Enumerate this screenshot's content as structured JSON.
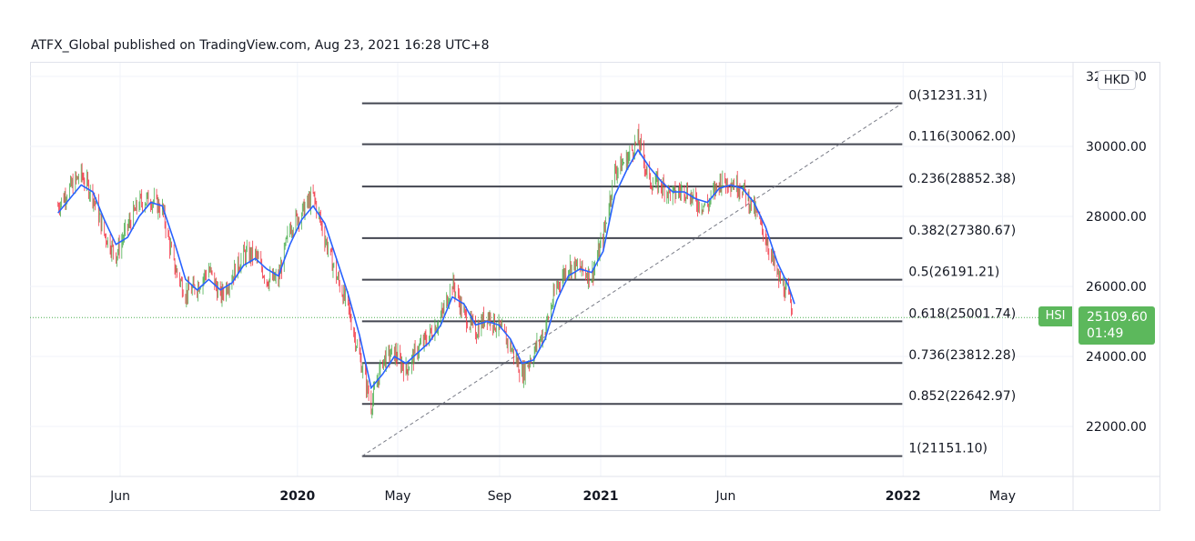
{
  "header": {
    "caption": "ATFX_Global published on TradingView.com, Aug 23, 2021 16:28 UTC+8"
  },
  "currency": "HKD",
  "last_price": {
    "symbol": "HSI",
    "price": "25109.60",
    "countdown": "01:49",
    "value": 25109.6
  },
  "colors": {
    "bull": "#4caf50",
    "bear": "#f23645",
    "ma": "#2962ff",
    "fib_line": "#434651",
    "trend": "#787b86",
    "tag_bg": "#5cb85c",
    "grid": "#f0f3fa"
  },
  "chart_data": {
    "type": "line",
    "title": "",
    "ylim": [
      20900,
      32200
    ],
    "grid": true,
    "y_ticks": [
      {
        "value": 32000,
        "label": "32000.00"
      },
      {
        "value": 30000,
        "label": "30000.00"
      },
      {
        "value": 28000,
        "label": "28000.00"
      },
      {
        "value": 26000,
        "label": "26000.00"
      },
      {
        "value": 24000,
        "label": "24000.00"
      },
      {
        "value": 22000,
        "label": "22000.00"
      }
    ],
    "x_ticks": [
      {
        "label": "Jun",
        "date": "2019-06",
        "bold": false
      },
      {
        "label": "2020",
        "date": "2020-01",
        "bold": true
      },
      {
        "label": "May",
        "date": "2020-05",
        "bold": false
      },
      {
        "label": "Sep",
        "date": "2020-09",
        "bold": false
      },
      {
        "label": "2021",
        "date": "2021-01",
        "bold": true
      },
      {
        "label": "Jun",
        "date": "2021-06",
        "bold": false
      },
      {
        "label": "2022",
        "date": "2022-01",
        "bold": true
      },
      {
        "label": "May",
        "date": "2022-05",
        "bold": false
      }
    ],
    "x_range": [
      "2019-03",
      "2022-08"
    ],
    "series": [
      {
        "name": "HSI",
        "x": [
          "2019-03-18",
          "2019-04-01",
          "2019-04-15",
          "2019-04-29",
          "2019-05-13",
          "2019-05-27",
          "2019-06-10",
          "2019-06-24",
          "2019-07-08",
          "2019-07-22",
          "2019-08-05",
          "2019-08-19",
          "2019-09-02",
          "2019-09-16",
          "2019-09-30",
          "2019-10-14",
          "2019-10-28",
          "2019-11-11",
          "2019-11-25",
          "2019-12-09",
          "2019-12-23",
          "2020-01-06",
          "2020-01-20",
          "2020-02-03",
          "2020-02-17",
          "2020-03-02",
          "2020-03-16",
          "2020-03-30",
          "2020-04-13",
          "2020-04-27",
          "2020-05-11",
          "2020-05-25",
          "2020-06-08",
          "2020-06-22",
          "2020-07-06",
          "2020-07-20",
          "2020-08-03",
          "2020-08-17",
          "2020-08-31",
          "2020-09-14",
          "2020-09-28",
          "2020-10-12",
          "2020-10-26",
          "2020-11-09",
          "2020-11-23",
          "2020-12-07",
          "2020-12-21",
          "2021-01-04",
          "2021-01-18",
          "2021-02-01",
          "2021-02-15",
          "2021-03-01",
          "2021-03-15",
          "2021-03-29",
          "2021-04-12",
          "2021-04-26",
          "2021-05-10",
          "2021-05-24",
          "2021-06-07",
          "2021-06-21",
          "2021-07-05",
          "2021-07-19",
          "2021-08-02",
          "2021-08-16",
          "2021-08-23"
        ],
        "values": [
          28300,
          28800,
          29200,
          28600,
          27500,
          26900,
          27700,
          28400,
          28500,
          28200,
          26600,
          25800,
          26000,
          26500,
          25700,
          26300,
          26900,
          26900,
          26200,
          26200,
          27700,
          28100,
          28600,
          27400,
          26300,
          25400,
          24000,
          22600,
          23900,
          24100,
          23600,
          24200,
          24600,
          25100,
          26100,
          25200,
          24700,
          25200,
          24800,
          24300,
          23500,
          24100,
          24800,
          26000,
          26600,
          26500,
          26300,
          27400,
          29300,
          29600,
          30200,
          29000,
          28900,
          28600,
          28800,
          28400,
          28300,
          29000,
          29000,
          28800,
          28200,
          27400,
          26300,
          25700,
          25109.6
        ]
      },
      {
        "name": "MA",
        "x": [
          "2019-03-18",
          "2019-04-01",
          "2019-04-15",
          "2019-04-29",
          "2019-05-13",
          "2019-05-27",
          "2019-06-10",
          "2019-06-24",
          "2019-07-08",
          "2019-07-22",
          "2019-08-05",
          "2019-08-19",
          "2019-09-02",
          "2019-09-16",
          "2019-09-30",
          "2019-10-14",
          "2019-10-28",
          "2019-11-11",
          "2019-11-25",
          "2019-12-09",
          "2019-12-23",
          "2020-01-06",
          "2020-01-20",
          "2020-02-03",
          "2020-02-17",
          "2020-03-02",
          "2020-03-16",
          "2020-03-30",
          "2020-04-13",
          "2020-04-27",
          "2020-05-11",
          "2020-05-25",
          "2020-06-08",
          "2020-06-22",
          "2020-07-06",
          "2020-07-20",
          "2020-08-03",
          "2020-08-17",
          "2020-08-31",
          "2020-09-14",
          "2020-09-28",
          "2020-10-12",
          "2020-10-26",
          "2020-11-09",
          "2020-11-23",
          "2020-12-07",
          "2020-12-21",
          "2021-01-04",
          "2021-01-18",
          "2021-02-01",
          "2021-02-15",
          "2021-03-01",
          "2021-03-15",
          "2021-03-29",
          "2021-04-12",
          "2021-04-26",
          "2021-05-10",
          "2021-05-24",
          "2021-06-07",
          "2021-06-21",
          "2021-07-05",
          "2021-07-19",
          "2021-08-02",
          "2021-08-16",
          "2021-08-23"
        ],
        "values": [
          28100,
          28500,
          28900,
          28700,
          27900,
          27200,
          27400,
          28000,
          28400,
          28300,
          27300,
          26200,
          25900,
          26200,
          25900,
          26100,
          26600,
          26800,
          26500,
          26300,
          27200,
          27900,
          28300,
          27800,
          26800,
          25800,
          24600,
          23100,
          23500,
          24000,
          23800,
          24100,
          24400,
          24900,
          25700,
          25500,
          24900,
          25000,
          24900,
          24500,
          23800,
          23900,
          24500,
          25600,
          26300,
          26500,
          26400,
          27000,
          28600,
          29300,
          29900,
          29400,
          29000,
          28700,
          28700,
          28500,
          28400,
          28800,
          28900,
          28800,
          28400,
          27700,
          26700,
          26000,
          25500
        ]
      }
    ],
    "fib_retracement": {
      "start": {
        "date": "2020-03-19",
        "value": 21151.1
      },
      "end": {
        "date": "2021-02-18",
        "value": 31231.31
      },
      "line_end_date": "2021-12-31",
      "levels": [
        {
          "ratio": 0,
          "value": 31231.31,
          "label": "0(31231.31)"
        },
        {
          "ratio": 0.116,
          "value": 30062.0,
          "label": "0.116(30062.00)"
        },
        {
          "ratio": 0.236,
          "value": 28852.38,
          "label": "0.236(28852.38)"
        },
        {
          "ratio": 0.382,
          "value": 27380.67,
          "label": "0.382(27380.67)"
        },
        {
          "ratio": 0.5,
          "value": 26191.21,
          "label": "0.5(26191.21)"
        },
        {
          "ratio": 0.618,
          "value": 25001.74,
          "label": "0.618(25001.74)"
        },
        {
          "ratio": 0.736,
          "value": 23812.28,
          "label": "0.736(23812.28)"
        },
        {
          "ratio": 0.852,
          "value": 22642.97,
          "label": "0.852(22642.97)"
        },
        {
          "ratio": 1,
          "value": 21151.1,
          "label": "1(21151.10)"
        }
      ]
    }
  }
}
